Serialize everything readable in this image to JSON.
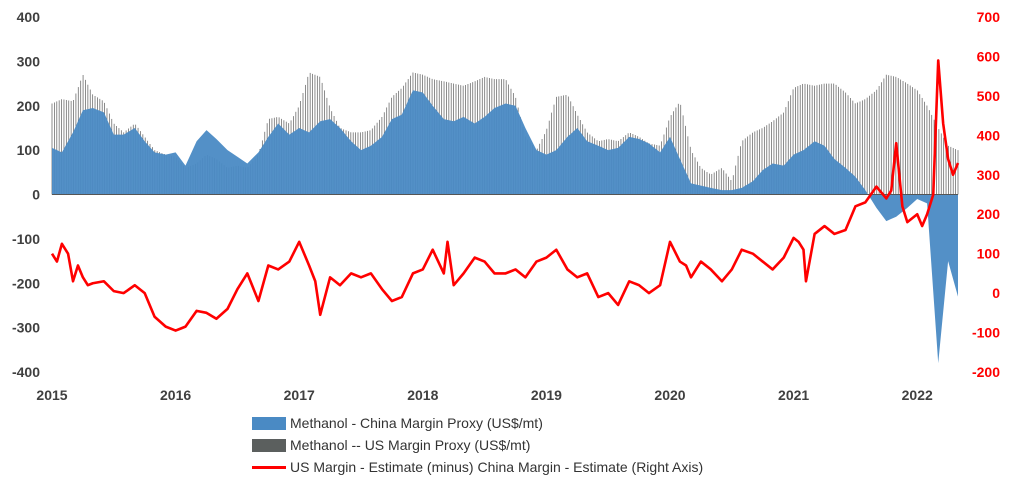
{
  "chart_data": {
    "type": "bar+line",
    "title": "",
    "x_ticks": [
      "2015",
      "2016",
      "2017",
      "2018",
      "2019",
      "2020",
      "2021",
      "2022"
    ],
    "x_range": [
      2015.0,
      2022.33
    ],
    "y_left": {
      "ticks": [
        "400",
        "300",
        "200",
        "100",
        "0",
        "-100",
        "-200",
        "-300",
        "-400"
      ],
      "range": [
        -400,
        400
      ],
      "unit": "US$/mt"
    },
    "y_right": {
      "ticks": [
        "700",
        "600",
        "500",
        "400",
        "300",
        "200",
        "100",
        "0",
        "-100",
        "-200"
      ],
      "range": [
        -200,
        700
      ],
      "unit": "US$/mt"
    },
    "series": [
      {
        "name": "Methanol - China Margin Proxy (US$/mt)",
        "type": "area-bar",
        "axis": "left",
        "color": "#4a8ac4",
        "x": [
          2015.0,
          2015.08,
          2015.17,
          2015.25,
          2015.33,
          2015.42,
          2015.5,
          2015.58,
          2015.67,
          2015.75,
          2015.83,
          2015.92,
          2016.0,
          2016.08,
          2016.17,
          2016.25,
          2016.33,
          2016.42,
          2016.5,
          2016.58,
          2016.67,
          2016.75,
          2016.83,
          2016.92,
          2017.0,
          2017.08,
          2017.17,
          2017.25,
          2017.33,
          2017.42,
          2017.5,
          2017.58,
          2017.67,
          2017.75,
          2017.83,
          2017.92,
          2018.0,
          2018.08,
          2018.17,
          2018.25,
          2018.33,
          2018.42,
          2018.5,
          2018.58,
          2018.67,
          2018.75,
          2018.83,
          2018.92,
          2019.0,
          2019.08,
          2019.17,
          2019.25,
          2019.33,
          2019.42,
          2019.5,
          2019.58,
          2019.67,
          2019.75,
          2019.83,
          2019.92,
          2020.0,
          2020.08,
          2020.17,
          2020.25,
          2020.33,
          2020.42,
          2020.5,
          2020.58,
          2020.67,
          2020.75,
          2020.83,
          2020.92,
          2021.0,
          2021.08,
          2021.17,
          2021.25,
          2021.33,
          2021.42,
          2021.5,
          2021.58,
          2021.67,
          2021.75,
          2021.83,
          2021.92,
          2022.0,
          2022.08,
          2022.17,
          2022.25,
          2022.33
        ],
        "values": [
          105,
          95,
          140,
          190,
          195,
          185,
          135,
          135,
          150,
          120,
          95,
          90,
          95,
          65,
          120,
          145,
          125,
          100,
          85,
          70,
          95,
          130,
          160,
          135,
          150,
          140,
          165,
          170,
          150,
          120,
          100,
          110,
          130,
          170,
          180,
          235,
          230,
          200,
          170,
          165,
          175,
          160,
          175,
          195,
          205,
          200,
          150,
          100,
          90,
          100,
          130,
          150,
          120,
          110,
          100,
          105,
          130,
          125,
          115,
          95,
          130,
          80,
          25,
          20,
          15,
          10,
          10,
          15,
          30,
          55,
          70,
          65,
          90,
          100,
          120,
          110,
          80,
          60,
          40,
          10,
          -30,
          -60,
          -50,
          -30,
          -10,
          -20,
          -380,
          -150,
          -230
        ]
      },
      {
        "name": "Methanol -- US Margin Proxy (US$/mt)",
        "type": "bar",
        "axis": "left",
        "color": "#6f6f6f",
        "x": [
          2015.0,
          2015.08,
          2015.17,
          2015.25,
          2015.33,
          2015.42,
          2015.5,
          2015.58,
          2015.67,
          2015.75,
          2015.83,
          2015.92,
          2016.0,
          2016.08,
          2016.17,
          2016.25,
          2016.33,
          2016.42,
          2016.5,
          2016.58,
          2016.67,
          2016.75,
          2016.83,
          2016.92,
          2017.0,
          2017.08,
          2017.17,
          2017.25,
          2017.33,
          2017.42,
          2017.5,
          2017.58,
          2017.67,
          2017.75,
          2017.83,
          2017.92,
          2018.0,
          2018.08,
          2018.17,
          2018.25,
          2018.33,
          2018.42,
          2018.5,
          2018.58,
          2018.67,
          2018.75,
          2018.83,
          2018.92,
          2019.0,
          2019.08,
          2019.17,
          2019.25,
          2019.33,
          2019.42,
          2019.5,
          2019.58,
          2019.67,
          2019.75,
          2019.83,
          2019.92,
          2020.0,
          2020.08,
          2020.17,
          2020.25,
          2020.33,
          2020.42,
          2020.5,
          2020.58,
          2020.67,
          2020.75,
          2020.83,
          2020.92,
          2021.0,
          2021.08,
          2021.17,
          2021.25,
          2021.33,
          2021.42,
          2021.5,
          2021.58,
          2021.67,
          2021.75,
          2021.83,
          2021.92,
          2022.0,
          2022.08,
          2022.17,
          2022.25,
          2022.33
        ],
        "values": [
          205,
          215,
          210,
          270,
          225,
          210,
          160,
          140,
          160,
          130,
          100,
          90,
          85,
          60,
          70,
          90,
          80,
          60,
          65,
          60,
          90,
          170,
          175,
          160,
          200,
          275,
          265,
          195,
          150,
          140,
          140,
          145,
          175,
          220,
          240,
          275,
          270,
          260,
          255,
          250,
          245,
          255,
          265,
          260,
          260,
          220,
          130,
          100,
          145,
          220,
          225,
          180,
          140,
          120,
          125,
          120,
          140,
          130,
          115,
          110,
          175,
          210,
          100,
          60,
          45,
          60,
          30,
          120,
          140,
          150,
          165,
          185,
          240,
          250,
          245,
          250,
          250,
          230,
          205,
          215,
          235,
          270,
          265,
          250,
          235,
          200,
          150,
          110,
          100
        ]
      },
      {
        "name": "US Margin - Estimate (minus) China Margin - Estimate (Right Axis)",
        "type": "line",
        "axis": "right",
        "color": "#ff0000",
        "x": [
          2015.0,
          2015.04,
          2015.08,
          2015.13,
          2015.17,
          2015.21,
          2015.25,
          2015.29,
          2015.33,
          2015.42,
          2015.5,
          2015.58,
          2015.67,
          2015.75,
          2015.83,
          2015.92,
          2016.0,
          2016.04,
          2016.08,
          2016.17,
          2016.25,
          2016.33,
          2016.42,
          2016.5,
          2016.58,
          2016.67,
          2016.75,
          2016.83,
          2016.92,
          2017.0,
          2017.08,
          2017.13,
          2017.17,
          2017.25,
          2017.29,
          2017.33,
          2017.42,
          2017.5,
          2017.58,
          2017.67,
          2017.75,
          2017.83,
          2017.92,
          2018.0,
          2018.08,
          2018.17,
          2018.2,
          2018.25,
          2018.33,
          2018.42,
          2018.5,
          2018.58,
          2018.67,
          2018.75,
          2018.83,
          2018.92,
          2019.0,
          2019.08,
          2019.17,
          2019.25,
          2019.33,
          2019.42,
          2019.5,
          2019.58,
          2019.67,
          2019.75,
          2019.83,
          2019.92,
          2020.0,
          2020.08,
          2020.13,
          2020.17,
          2020.25,
          2020.33,
          2020.42,
          2020.5,
          2020.58,
          2020.67,
          2020.75,
          2020.83,
          2020.92,
          2021.0,
          2021.04,
          2021.08,
          2021.1,
          2021.17,
          2021.25,
          2021.33,
          2021.42,
          2021.5,
          2021.58,
          2021.67,
          2021.75,
          2021.79,
          2021.83,
          2021.88,
          2021.92,
          2022.0,
          2022.04,
          2022.08,
          2022.13,
          2022.17,
          2022.21,
          2022.25,
          2022.29,
          2022.33
        ],
        "values": [
          100,
          80,
          125,
          100,
          30,
          70,
          40,
          20,
          25,
          30,
          5,
          0,
          20,
          0,
          -60,
          -85,
          -95,
          -90,
          -85,
          -45,
          -50,
          -65,
          -40,
          10,
          50,
          -20,
          70,
          60,
          80,
          130,
          70,
          30,
          -55,
          40,
          30,
          20,
          50,
          40,
          50,
          10,
          -20,
          -10,
          50,
          60,
          110,
          50,
          130,
          20,
          50,
          90,
          80,
          50,
          50,
          60,
          40,
          80,
          90,
          110,
          60,
          40,
          50,
          -10,
          0,
          -30,
          30,
          20,
          0,
          20,
          130,
          80,
          70,
          40,
          80,
          60,
          30,
          60,
          110,
          100,
          80,
          60,
          90,
          140,
          130,
          110,
          30,
          150,
          170,
          150,
          160,
          220,
          230,
          270,
          240,
          260,
          380,
          220,
          180,
          200,
          170,
          200,
          250,
          590,
          430,
          340,
          300,
          330
        ]
      }
    ],
    "legend_position": "bottom"
  }
}
